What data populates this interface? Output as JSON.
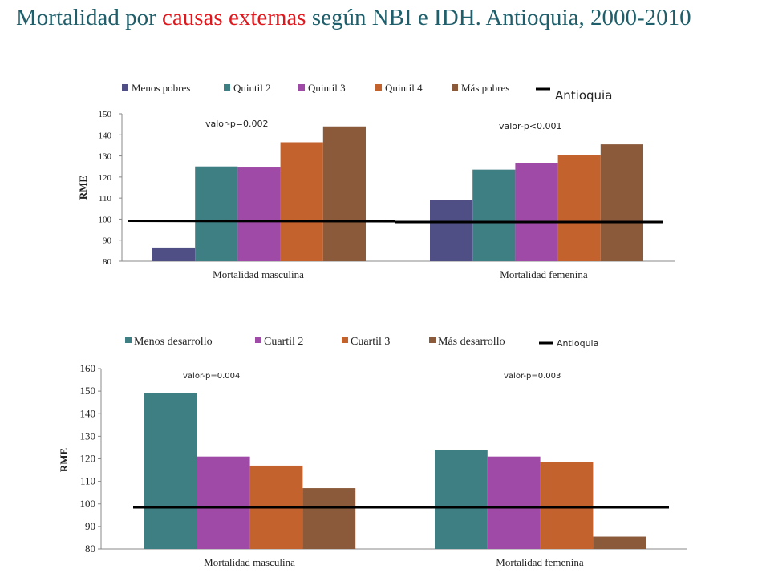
{
  "page": {
    "title_pre": "Mortalidad por",
    "title_accent": "causas externas",
    "title_post": "según NBI e IDH. Antioquia, 2000-2010",
    "title_color": "#1f5f6b",
    "accent_color": "#e0181e"
  },
  "chart_data": [
    {
      "type": "bar",
      "ylabel": "RME",
      "ylim": [
        80,
        150
      ],
      "yticks": [
        80,
        90,
        100,
        110,
        120,
        130,
        140,
        150
      ],
      "categories": [
        "Mortalidad masculina",
        "Mortalidad femenina"
      ],
      "series": [
        {
          "name": "Menos pobres",
          "color": "#4f4f86",
          "values": [
            86.5,
            109
          ]
        },
        {
          "name": "Quintil 2",
          "color": "#3e7f83",
          "values": [
            125,
            123.5
          ]
        },
        {
          "name": "Quintil 3",
          "color": "#9e4aa6",
          "values": [
            124.5,
            126.5
          ]
        },
        {
          "name": "Quintil 4",
          "color": "#c4622d",
          "values": [
            136.5,
            130.5
          ]
        },
        {
          "name": "Más pobres",
          "color": "#8a5a3a",
          "values": [
            144,
            135.5
          ]
        }
      ],
      "reference": {
        "name": "Antioquia",
        "value": 99
      },
      "annotations": [
        "valor-p=0.002",
        "valor-p<0.001"
      ],
      "grid": false,
      "legend_position": "top"
    },
    {
      "type": "bar",
      "ylabel": "RME",
      "ylim": [
        80,
        160
      ],
      "yticks": [
        80,
        90,
        100,
        110,
        120,
        130,
        140,
        150,
        160
      ],
      "categories": [
        "Mortalidad masculina",
        "Mortalidad femenina"
      ],
      "series": [
        {
          "name": "Menos desarrollo",
          "color": "#3e7f83",
          "values": [
            149,
            124
          ]
        },
        {
          "name": "Cuartil 2",
          "color": "#9e4aa6",
          "values": [
            121,
            121
          ]
        },
        {
          "name": "Cuartil 3",
          "color": "#c4622d",
          "values": [
            117,
            118.5
          ]
        },
        {
          "name": "Más desarrollo",
          "color": "#8a5a3a",
          "values": [
            107,
            85.5
          ]
        }
      ],
      "reference": {
        "name": "Antioquia",
        "value": 98.5
      },
      "annotations": [
        "valor-p=0.004",
        "valor-p=0.003"
      ],
      "grid": false,
      "legend_position": "top"
    }
  ]
}
